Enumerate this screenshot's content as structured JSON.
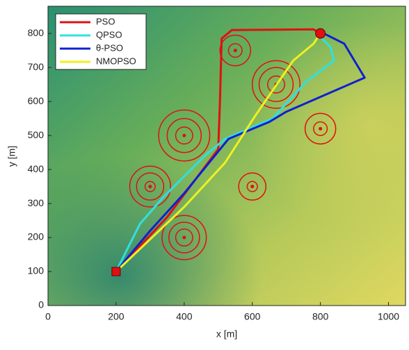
{
  "chart_data": {
    "type": "line",
    "xlabel": "x [m]",
    "ylabel": "y [m]",
    "xlim": [
      0,
      1050
    ],
    "ylim": [
      0,
      880
    ],
    "xticks": [
      0,
      200,
      400,
      600,
      800,
      1000
    ],
    "yticks": [
      0,
      100,
      200,
      300,
      400,
      500,
      600,
      700,
      800
    ],
    "legend": "upper left",
    "series": [
      {
        "name": "PSO",
        "color": "#e01010",
        "x": [
          200,
          350,
          500,
          505,
          510,
          540,
          780,
          800
        ],
        "values": [
          100,
          260,
          460,
          600,
          785,
          810,
          812,
          800
        ]
      },
      {
        "name": "QPSO",
        "color": "#30e0e0",
        "x": [
          200,
          240,
          270,
          340,
          460,
          520,
          660,
          760,
          840,
          830,
          800,
          800
        ],
        "values": [
          100,
          180,
          240,
          320,
          440,
          490,
          550,
          660,
          720,
          760,
          790,
          800
        ]
      },
      {
        "name": "θ-PSO",
        "color": "#1020d0",
        "x": [
          200,
          300,
          400,
          530,
          650,
          700,
          930,
          870,
          810,
          800
        ],
        "values": [
          100,
          220,
          330,
          490,
          540,
          570,
          670,
          770,
          800,
          800
        ]
      },
      {
        "name": "NMOPSO",
        "color": "#f0f020",
        "x": [
          200,
          400,
          520,
          610,
          720,
          780,
          800
        ],
        "values": [
          100,
          290,
          420,
          560,
          720,
          770,
          800
        ]
      }
    ],
    "threat_color": "#e01010",
    "threats": [
      {
        "x": 550,
        "y": 750,
        "radii": [
          20,
          45
        ]
      },
      {
        "x": 670,
        "y": 650,
        "radii": [
          25,
          50,
          70
        ]
      },
      {
        "x": 400,
        "y": 500,
        "radii": [
          25,
          50,
          75
        ]
      },
      {
        "x": 800,
        "y": 520,
        "radii": [
          20,
          45
        ]
      },
      {
        "x": 300,
        "y": 350,
        "radii": [
          15,
          40,
          60
        ]
      },
      {
        "x": 600,
        "y": 350,
        "radii": [
          15,
          40
        ]
      },
      {
        "x": 400,
        "y": 200,
        "radii": [
          25,
          45,
          65
        ]
      }
    ],
    "start": {
      "x": 200,
      "y": 100
    },
    "goal": {
      "x": 800,
      "y": 800
    }
  }
}
